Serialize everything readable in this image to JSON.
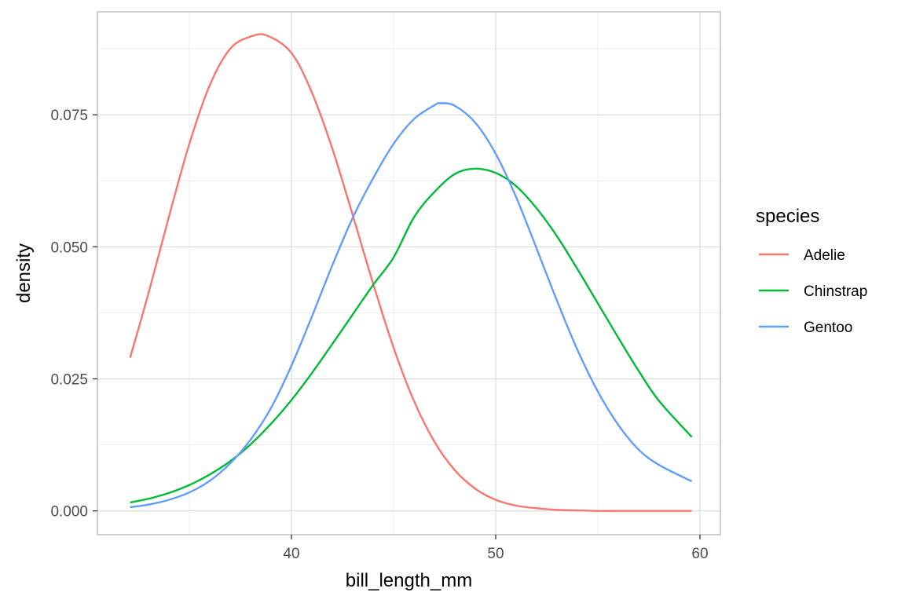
{
  "chart_data": {
    "type": "line",
    "title": "",
    "xlabel": "bill_length_mm",
    "ylabel": "density",
    "xlim": [
      30.5,
      61
    ],
    "ylim": [
      -0.0045,
      0.0945
    ],
    "x_ticks": [
      40,
      50,
      60
    ],
    "x_tick_labels": [
      "40",
      "50",
      "60"
    ],
    "y_ticks": [
      0,
      0.025,
      0.05,
      0.075
    ],
    "y_tick_labels": [
      "0.000",
      "0.025",
      "0.050",
      "0.075"
    ],
    "grid": true,
    "legend": {
      "title": "species",
      "position": "right"
    },
    "series": [
      {
        "name": "Adelie",
        "color": "#F8766D",
        "x": [
          32.1,
          33,
          34,
          35,
          36,
          37,
          38,
          38.8,
          40,
          41,
          42,
          43,
          44,
          45,
          46,
          47,
          48,
          49,
          50,
          51,
          52,
          53,
          54,
          55,
          56,
          57,
          58,
          59.6
        ],
        "values": [
          0.029,
          0.0412,
          0.0557,
          0.0695,
          0.0806,
          0.0875,
          0.0898,
          0.09,
          0.0867,
          0.0792,
          0.0686,
          0.056,
          0.043,
          0.0309,
          0.0208,
          0.0131,
          0.0077,
          0.0042,
          0.0021,
          0.001,
          0.0005,
          0.0002,
          0.0001,
          0.0,
          0.0,
          0.0,
          0.0,
          0.0
        ]
      },
      {
        "name": "Chinstrap",
        "color": "#00BA38",
        "x": [
          32.1,
          33,
          34,
          35,
          36,
          37,
          38,
          39,
          40,
          41,
          42,
          43,
          44,
          45,
          46,
          47,
          48,
          49,
          50,
          51,
          52,
          53,
          54,
          55,
          56,
          57,
          58,
          59.6
        ],
        "values": [
          0.0016,
          0.0023,
          0.0034,
          0.0049,
          0.0069,
          0.0094,
          0.0126,
          0.0165,
          0.021,
          0.0261,
          0.0316,
          0.0372,
          0.0428,
          0.048,
          0.0556,
          0.0604,
          0.0638,
          0.0648,
          0.064,
          0.0615,
          0.0573,
          0.052,
          0.0458,
          0.0393,
          0.0328,
          0.0265,
          0.0208,
          0.014
        ]
      },
      {
        "name": "Gentoo",
        "color": "#619CFF",
        "x": [
          32.1,
          33,
          34,
          35,
          36,
          37,
          38,
          39,
          40,
          41,
          42,
          43,
          44,
          45,
          46,
          47,
          47.3,
          48,
          49,
          50,
          51,
          52,
          53,
          54,
          55,
          56,
          57,
          58,
          59.6
        ],
        "values": [
          0.0007,
          0.0012,
          0.0021,
          0.0035,
          0.0057,
          0.009,
          0.0135,
          0.0195,
          0.0275,
          0.0368,
          0.0465,
          0.0555,
          0.063,
          0.0695,
          0.0742,
          0.0768,
          0.0772,
          0.0767,
          0.0735,
          0.0676,
          0.0594,
          0.0497,
          0.0398,
          0.0305,
          0.0226,
          0.0163,
          0.0116,
          0.0087,
          0.0056
        ]
      }
    ]
  }
}
